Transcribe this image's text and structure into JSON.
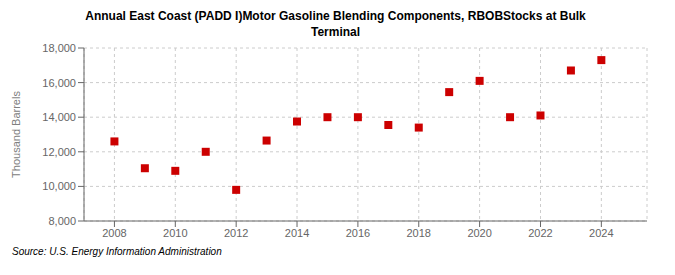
{
  "chart_data": {
    "type": "scatter",
    "title": "Annual East Coast (PADD I)Motor Gasoline Blending Components, RBOBStocks at Bulk\nTerminal",
    "ylabel": "Thousand Barrels",
    "source": "Source: U.S. Energy Information Administration",
    "x": [
      2008,
      2009,
      2010,
      2011,
      2012,
      2013,
      2014,
      2015,
      2016,
      2017,
      2018,
      2019,
      2020,
      2021,
      2022,
      2023,
      2024
    ],
    "values": [
      12600,
      11050,
      10900,
      12000,
      9800,
      12650,
      13750,
      14000,
      14000,
      13550,
      13400,
      15450,
      16100,
      14000,
      14100,
      16700,
      17300
    ],
    "color": "#cc0000",
    "marker": "square",
    "xlim": [
      2007.0,
      2025.5
    ],
    "ylim": [
      8000,
      18000
    ],
    "xticks": [
      2008,
      2010,
      2012,
      2014,
      2016,
      2018,
      2020,
      2022,
      2024
    ],
    "yticks": [
      {
        "value": 8000,
        "label": "8,000"
      },
      {
        "value": 10000,
        "label": "10,000"
      },
      {
        "value": 12000,
        "label": "12,000"
      },
      {
        "value": 14000,
        "label": "14,000"
      },
      {
        "value": 16000,
        "label": "16,000"
      },
      {
        "value": 18000,
        "label": "18,000"
      }
    ],
    "grid": true
  }
}
